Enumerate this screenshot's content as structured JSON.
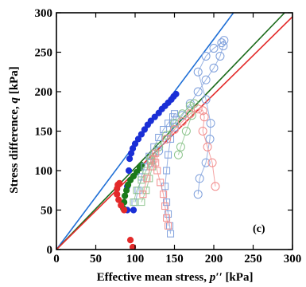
{
  "chart_data": {
    "type": "scatter",
    "panel_label": "(c)",
    "xlabel_main": "Effective mean stress, ",
    "xlabel_var": "p′′",
    "xlabel_unit": " [kPa]",
    "ylabel_main": "Stress difference, ",
    "ylabel_var": "q",
    "ylabel_unit": " [kPa]",
    "xlim": [
      0,
      300
    ],
    "ylim": [
      0,
      300
    ],
    "xticks": [
      0,
      50,
      100,
      150,
      200,
      250,
      300
    ],
    "yticks": [
      0,
      50,
      100,
      150,
      200,
      250,
      300
    ],
    "grid": false,
    "reference_lines": [
      {
        "color": "#1f6fd6",
        "points": [
          [
            0,
            0
          ],
          [
            225,
            300
          ]
        ]
      },
      {
        "color": "#1b6b1b",
        "points": [
          [
            0,
            0
          ],
          [
            290,
            300
          ]
        ]
      },
      {
        "color": "#e32a2a",
        "points": [
          [
            0,
            0
          ],
          [
            300,
            295
          ]
        ]
      }
    ],
    "series": [
      {
        "color": "#1a2fd6",
        "marker": "filled-circle",
        "points": [
          [
            90,
            50
          ],
          [
            90,
            80
          ],
          [
            92,
            100
          ],
          [
            93,
            115
          ],
          [
            95,
            122
          ],
          [
            97,
            128
          ],
          [
            100,
            134
          ],
          [
            104,
            140
          ],
          [
            108,
            146
          ],
          [
            112,
            152
          ],
          [
            116,
            158
          ],
          [
            120,
            163
          ],
          [
            125,
            168
          ],
          [
            130,
            173
          ],
          [
            134,
            178
          ],
          [
            138,
            182
          ],
          [
            142,
            186
          ],
          [
            146,
            190
          ],
          [
            149,
            194
          ],
          [
            152,
            197
          ],
          [
            98,
            50
          ]
        ]
      },
      {
        "color": "#1b7a1b",
        "marker": "filled-circle",
        "points": [
          [
            85,
            52
          ],
          [
            86,
            60
          ],
          [
            87,
            68
          ],
          [
            89,
            75
          ],
          [
            91,
            82
          ],
          [
            94,
            88
          ],
          [
            98,
            93
          ],
          [
            102,
            98
          ],
          [
            106,
            103
          ],
          [
            108,
            107
          ]
        ]
      },
      {
        "color": "#e32a2a",
        "marker": "filled-circle",
        "points": [
          [
            97,
            3
          ],
          [
            94,
            12
          ],
          [
            86,
            50
          ],
          [
            82,
            56
          ],
          [
            79,
            63
          ],
          [
            77,
            70
          ],
          [
            77,
            77
          ],
          [
            78,
            82
          ],
          [
            80,
            84
          ]
        ]
      },
      {
        "color": "#7fa0dc",
        "marker": "open-circle",
        "points": [
          [
            120,
            110
          ],
          [
            130,
            125
          ],
          [
            140,
            140
          ],
          [
            150,
            155
          ],
          [
            160,
            170
          ],
          [
            170,
            185
          ],
          [
            180,
            200
          ],
          [
            190,
            215
          ],
          [
            200,
            230
          ],
          [
            208,
            245
          ],
          [
            212,
            258
          ],
          [
            213,
            265
          ],
          [
            210,
            262
          ],
          [
            200,
            255
          ],
          [
            190,
            245
          ],
          [
            180,
            225
          ],
          [
            190,
            190
          ],
          [
            196,
            160
          ],
          [
            195,
            140
          ],
          [
            190,
            110
          ],
          [
            182,
            90
          ],
          [
            180,
            70
          ]
        ]
      },
      {
        "color": "#7fa0dc",
        "marker": "open-square",
        "points": [
          [
            100,
            60
          ],
          [
            104,
            75
          ],
          [
            108,
            92
          ],
          [
            112,
            105
          ],
          [
            118,
            118
          ],
          [
            124,
            130
          ],
          [
            130,
            142
          ],
          [
            136,
            152
          ],
          [
            142,
            160
          ],
          [
            148,
            168
          ],
          [
            150,
            172
          ],
          [
            148,
            160
          ],
          [
            145,
            140
          ],
          [
            142,
            120
          ],
          [
            140,
            100
          ],
          [
            138,
            80
          ],
          [
            140,
            60
          ],
          [
            142,
            45
          ],
          [
            144,
            30
          ],
          [
            145,
            20
          ]
        ]
      },
      {
        "color": "#8cc48c",
        "marker": "open-circle",
        "points": [
          [
            120,
            115
          ],
          [
            130,
            130
          ],
          [
            140,
            145
          ],
          [
            150,
            160
          ],
          [
            160,
            172
          ],
          [
            170,
            182
          ],
          [
            175,
            185
          ],
          [
            172,
            170
          ],
          [
            165,
            150
          ],
          [
            158,
            130
          ],
          [
            155,
            120
          ]
        ]
      },
      {
        "color": "#8cc48c",
        "marker": "open-square",
        "points": [
          [
            98,
            60
          ],
          [
            102,
            75
          ],
          [
            108,
            88
          ],
          [
            114,
            100
          ],
          [
            120,
            112
          ],
          [
            124,
            122
          ],
          [
            122,
            105
          ],
          [
            118,
            90
          ],
          [
            114,
            75
          ],
          [
            108,
            60
          ]
        ]
      },
      {
        "color": "#f28c8c",
        "marker": "open-circle",
        "points": [
          [
            140,
            140
          ],
          [
            150,
            152
          ],
          [
            160,
            162
          ],
          [
            170,
            172
          ],
          [
            180,
            178
          ],
          [
            186,
            176
          ],
          [
            188,
            168
          ],
          [
            186,
            150
          ],
          [
            192,
            130
          ],
          [
            198,
            110
          ],
          [
            202,
            80
          ]
        ]
      },
      {
        "color": "#f28c8c",
        "marker": "open-square",
        "points": [
          [
            110,
            70
          ],
          [
            115,
            90
          ],
          [
            120,
            105
          ],
          [
            124,
            115
          ],
          [
            126,
            122
          ],
          [
            126,
            110
          ],
          [
            128,
            100
          ],
          [
            132,
            85
          ],
          [
            136,
            70
          ],
          [
            138,
            55
          ],
          [
            140,
            40
          ],
          [
            142,
            30
          ]
        ]
      }
    ]
  }
}
